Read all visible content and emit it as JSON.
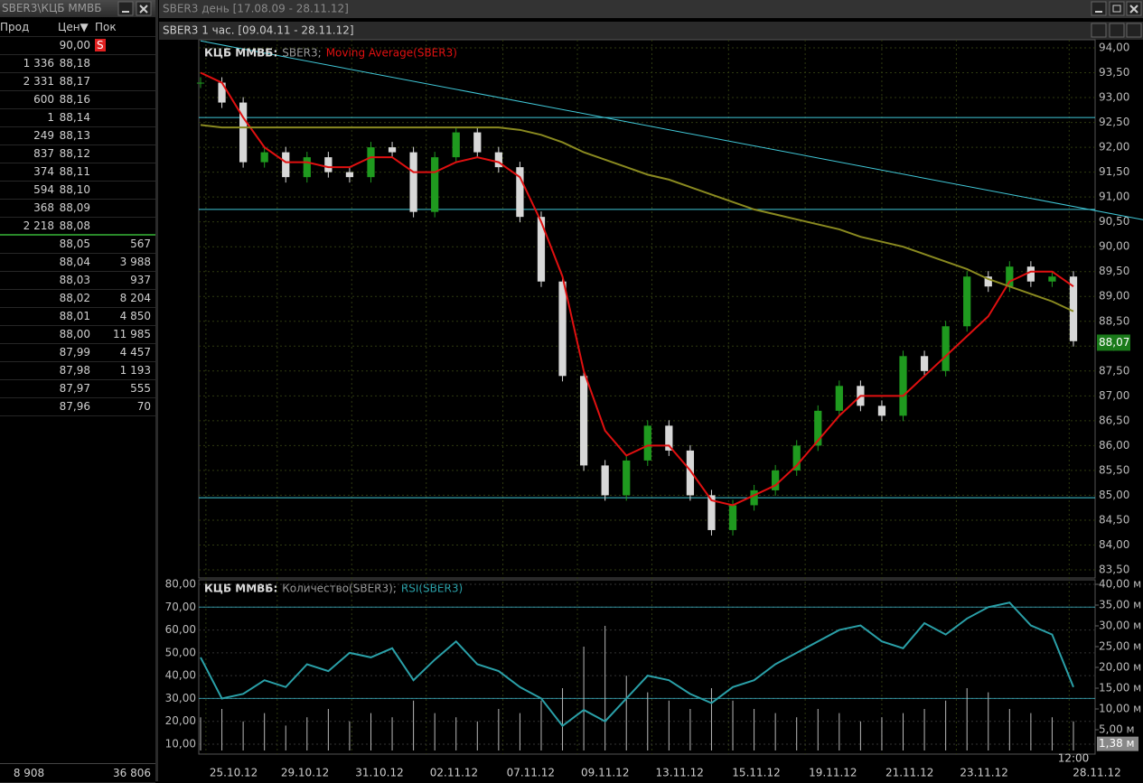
{
  "order_book": {
    "title": "SBER3\\КЦБ ММВБ",
    "columns": [
      "Прод",
      "Цен▼",
      "Пок"
    ],
    "asks": [
      [
        "",
        "90,00",
        "S"
      ],
      [
        "1 336",
        "88,18",
        ""
      ],
      [
        "2 331",
        "88,17",
        ""
      ],
      [
        "600",
        "88,16",
        ""
      ],
      [
        "1",
        "88,14",
        ""
      ],
      [
        "249",
        "88,13",
        ""
      ],
      [
        "837",
        "88,12",
        ""
      ],
      [
        "374",
        "88,11",
        ""
      ],
      [
        "594",
        "88,10",
        ""
      ],
      [
        "368",
        "88,09",
        ""
      ],
      [
        "2 218",
        "88,08",
        ""
      ]
    ],
    "bids": [
      [
        "",
        "88,05",
        "567"
      ],
      [
        "",
        "88,04",
        "3 988"
      ],
      [
        "",
        "88,03",
        "937"
      ],
      [
        "",
        "88,02",
        "8 204"
      ],
      [
        "",
        "88,01",
        "4 850"
      ],
      [
        "",
        "88,00",
        "11 985"
      ],
      [
        "",
        "87,99",
        "4 457"
      ],
      [
        "",
        "87,98",
        "1 193"
      ],
      [
        "",
        "87,97",
        "555"
      ],
      [
        "",
        "87,96",
        "70"
      ]
    ],
    "totals": [
      "8 908",
      "36 806"
    ]
  },
  "window": {
    "title": "SBER3  день [17.08.09 - 28.11.12]",
    "subtitle": "SBER3  1 час. [09.04.11 - 28.11.12]"
  },
  "chart_data": [
    {
      "type": "candlestick",
      "legend": [
        "КЦБ ММВБ:",
        "SBER3;",
        "Moving Average(SBER3)"
      ],
      "xlim": [
        0,
        41
      ],
      "xticks": [
        {
          "value": 0.25,
          "label": "25.10.12"
        },
        {
          "value": 3.6,
          "label": "29.10.12"
        },
        {
          "value": 7.1,
          "label": "31.10.12"
        },
        {
          "value": 10.6,
          "label": "02.11.12"
        },
        {
          "value": 14.2,
          "label": "07.11.12"
        },
        {
          "value": 17.7,
          "label": "09.11.12"
        },
        {
          "value": 21.2,
          "label": "13.11.12"
        },
        {
          "value": 24.8,
          "label": "15.11.12"
        },
        {
          "value": 28.4,
          "label": "19.11.12"
        },
        {
          "value": 32,
          "label": "21.11.12"
        },
        {
          "value": 35.5,
          "label": "23.11.12"
        },
        {
          "value": 40.8,
          "label": "28.11.12"
        }
      ],
      "time_label": {
        "value": 41,
        "label": "12:00"
      },
      "ylim": [
        83.5,
        94
      ],
      "yticks": [
        {
          "value": 83.5,
          "label": "83,50"
        },
        {
          "value": 84,
          "label": "84,00"
        },
        {
          "value": 84.5,
          "label": "84,50"
        },
        {
          "value": 85,
          "label": "85,00"
        },
        {
          "value": 85.5,
          "label": "85,50"
        },
        {
          "value": 86,
          "label": "86,00"
        },
        {
          "value": 86.5,
          "label": "86,50"
        },
        {
          "value": 87,
          "label": "87,00"
        },
        {
          "value": 87.5,
          "label": "87,50"
        },
        {
          "value": 88,
          "label": "88,00"
        },
        {
          "value": 88.5,
          "label": "88,50"
        },
        {
          "value": 89,
          "label": "89,00"
        },
        {
          "value": 89.5,
          "label": "89,50"
        },
        {
          "value": 90,
          "label": "90,00"
        },
        {
          "value": 90.5,
          "label": "90,50"
        },
        {
          "value": 91,
          "label": "91,00"
        },
        {
          "value": 91.5,
          "label": "91,50"
        },
        {
          "value": 92,
          "label": "92,00"
        },
        {
          "value": 92.5,
          "label": "92,50"
        },
        {
          "value": 93,
          "label": "93,00"
        },
        {
          "value": 93.5,
          "label": "93,50"
        },
        {
          "value": 94,
          "label": "94,00"
        }
      ],
      "grid": true,
      "close": {
        "color": "#1f9a1f",
        "down_color": "#d8d8d8",
        "values": [
          93.3,
          92.9,
          91.7,
          91.9,
          91.4,
          91.8,
          91.5,
          91.4,
          92.0,
          91.9,
          90.7,
          91.8,
          92.3,
          91.9,
          91.6,
          90.6,
          89.3,
          87.4,
          85.6,
          85.0,
          85.7,
          86.4,
          85.9,
          85.0,
          84.3,
          84.8,
          85.1,
          85.5,
          86.0,
          86.7,
          87.2,
          86.8,
          86.6,
          87.8,
          87.5,
          88.4,
          89.4,
          89.2,
          89.6,
          89.3,
          89.4,
          88.1
        ]
      },
      "series": [
        {
          "name": "Moving Average(SBER3)",
          "color": "#e01010",
          "values": [
            93.5,
            93.3,
            92.6,
            92.0,
            91.7,
            91.7,
            91.6,
            91.6,
            91.8,
            91.8,
            91.5,
            91.5,
            91.7,
            91.8,
            91.7,
            91.4,
            90.5,
            89.4,
            87.5,
            86.3,
            85.8,
            86.0,
            86.0,
            85.5,
            84.9,
            84.8,
            85.0,
            85.2,
            85.6,
            86.1,
            86.6,
            87.0,
            87.0,
            87.0,
            87.4,
            87.8,
            88.2,
            88.6,
            89.3,
            89.5,
            89.5,
            89.2
          ]
        },
        {
          "color": "#8a8a20",
          "values": [
            92.45,
            92.4,
            92.4,
            92.4,
            92.4,
            92.4,
            92.4,
            92.4,
            92.4,
            92.4,
            92.4,
            92.4,
            92.4,
            92.4,
            92.4,
            92.35,
            92.25,
            92.1,
            91.9,
            91.75,
            91.6,
            91.45,
            91.35,
            91.2,
            91.05,
            90.9,
            90.75,
            90.65,
            90.55,
            90.45,
            90.35,
            90.2,
            90.1,
            90.0,
            89.85,
            89.7,
            89.55,
            89.35,
            89.2,
            89.05,
            88.9,
            88.7
          ]
        }
      ],
      "levels": {
        "color": "#40c8d8",
        "values": [
          92.6,
          90.75,
          84.95
        ]
      },
      "trendline": {
        "color": "#40c8d8",
        "x": [
          0,
          41
        ],
        "values": [
          94.14,
          90.81
        ]
      },
      "last_price": {
        "value": 88.07,
        "label": "88,07"
      }
    },
    {
      "type": "volume-rsi",
      "legend": [
        "КЦБ ММВБ:",
        "Количество(SBER3);",
        "RSI(SBER3)"
      ],
      "xlim": [
        0,
        41
      ],
      "ylim": [
        10,
        80
      ],
      "yticks": [
        {
          "value": 10,
          "label": "10,00"
        },
        {
          "value": 20,
          "label": "20,00"
        },
        {
          "value": 30,
          "label": "30,00"
        },
        {
          "value": 40,
          "label": "40,00"
        },
        {
          "value": 50,
          "label": "50,00"
        },
        {
          "value": 60,
          "label": "60,00"
        },
        {
          "value": 70,
          "label": "70,00"
        },
        {
          "value": 80,
          "label": "80,00"
        }
      ],
      "y2lim": [
        0,
        40
      ],
      "y2ticks": [
        {
          "value": 5,
          "label": "5,00 м"
        },
        {
          "value": 10,
          "label": "10,00 м"
        },
        {
          "value": 15,
          "label": "15,00 м"
        },
        {
          "value": 20,
          "label": "20,00 м"
        },
        {
          "value": 25,
          "label": "25,00 м"
        },
        {
          "value": 30,
          "label": "30,00 м"
        },
        {
          "value": 35,
          "label": "35,00 м"
        },
        {
          "value": 40,
          "label": "40,00 м"
        }
      ],
      "series": [
        {
          "name": "Количество(SBER3)",
          "color": "#b8b8b8",
          "axis": "y2",
          "values": [
            8,
            10,
            7,
            9,
            6,
            8,
            10,
            7,
            9,
            8,
            12,
            9,
            8,
            7,
            10,
            9,
            12,
            15,
            25,
            30,
            18,
            14,
            12,
            10,
            15,
            12,
            10,
            9,
            8,
            10,
            9,
            7,
            8,
            9,
            10,
            12,
            15,
            14,
            10,
            9,
            8,
            7
          ]
        },
        {
          "name": "RSI(SBER3)",
          "color": "#2aa0a8",
          "values": [
            48,
            30,
            32,
            38,
            35,
            45,
            42,
            50,
            48,
            52,
            38,
            47,
            55,
            45,
            42,
            35,
            30,
            18,
            25,
            20,
            30,
            40,
            38,
            32,
            28,
            35,
            38,
            45,
            50,
            55,
            60,
            62,
            55,
            52,
            63,
            58,
            65,
            70,
            72,
            62,
            58,
            35
          ]
        }
      ],
      "levels": {
        "color": "#40c8d8",
        "values": [
          30,
          70
        ]
      },
      "last_volume": {
        "value": 1.38,
        "label": "1,38 м"
      }
    }
  ]
}
